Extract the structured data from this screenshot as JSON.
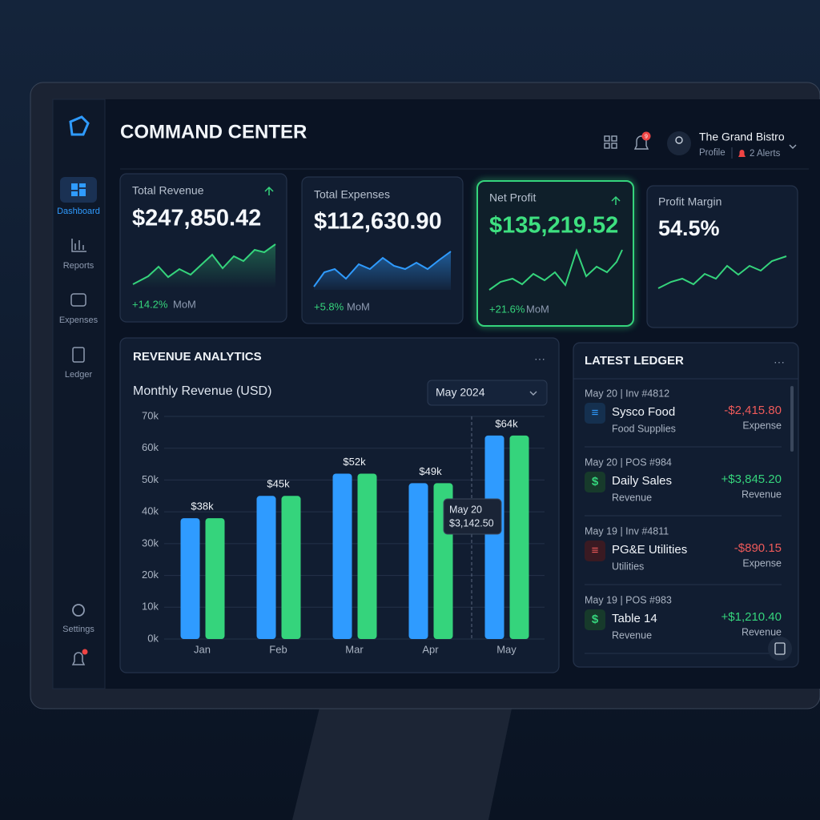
{
  "sidebar": {
    "items": [
      "Dashboard",
      "Reports",
      "Expenses",
      "Ledger",
      "Settings"
    ]
  },
  "header": {
    "title": "COMMAND CENTER",
    "notification_count": "9",
    "account": {
      "name": "The Grand Bistro",
      "profile": "Profile",
      "alerts": "2 Alerts"
    }
  },
  "kpis": [
    {
      "label": "Total Revenue",
      "value": "$247,850.42",
      "change": "+14.2%",
      "period": "MoM"
    },
    {
      "label": "Total Expenses",
      "value": "$112,630.90",
      "change": "+5.8%",
      "period": "MoM"
    },
    {
      "label": "Net Profit",
      "value": "$135,219.52",
      "change": "+21.6%",
      "period": "MoM"
    },
    {
      "label": "Profit Margin",
      "value": "54.5%"
    }
  ],
  "chart_data": {
    "type": "bar",
    "title": "REVENUE ANALYTICS",
    "subtitle": "Monthly Revenue (USD)",
    "filter": "May 2024",
    "categories": [
      "Jan",
      "Feb",
      "Mar",
      "Apr",
      "May"
    ],
    "series": [
      {
        "color": "#2f9bff",
        "values": [
          38000,
          45000,
          52000,
          49000,
          64000
        ],
        "value_labels": [
          "$38k",
          "$45k",
          "$52k",
          "$49k",
          "$64k"
        ]
      },
      {
        "color": "#35d47c",
        "values": [
          38000,
          45000,
          52000,
          49000,
          64000
        ]
      }
    ],
    "ylim": [
      0,
      70000
    ],
    "yticks": [
      {
        "value": 0,
        "label": "0k"
      },
      {
        "value": 10000,
        "label": "10k"
      },
      {
        "value": 20000,
        "label": "20k"
      },
      {
        "value": 30000,
        "label": "30k"
      },
      {
        "value": 40000,
        "label": "40k"
      },
      {
        "value": 50000,
        "label": "50k"
      },
      {
        "value": 60000,
        "label": "60k"
      },
      {
        "value": 70000,
        "label": "70k"
      }
    ],
    "grid": true,
    "tooltip": {
      "date": "May 20",
      "value": "$3,142.50"
    }
  },
  "ledger": {
    "title": "LATEST LEDGER",
    "entries": [
      {
        "ref": "May 20 | Inv #4812",
        "name": "Sysco Food",
        "category": "Food Supplies",
        "amount": "-$2,415.80",
        "type": "Expense"
      },
      {
        "ref": "May 20 | POS #984",
        "name": "Daily Sales",
        "category": "Revenue",
        "amount": "+$3,845.20",
        "type": "Revenue"
      },
      {
        "ref": "May 19 | Inv #4811",
        "name": "PG&E Utilities",
        "category": "Utilities",
        "amount": "-$890.15",
        "type": "Expense"
      },
      {
        "ref": "May 19 | POS #983",
        "name": "Table 14",
        "category": "Revenue",
        "amount": "+$1,210.40",
        "type": "Revenue"
      }
    ]
  }
}
